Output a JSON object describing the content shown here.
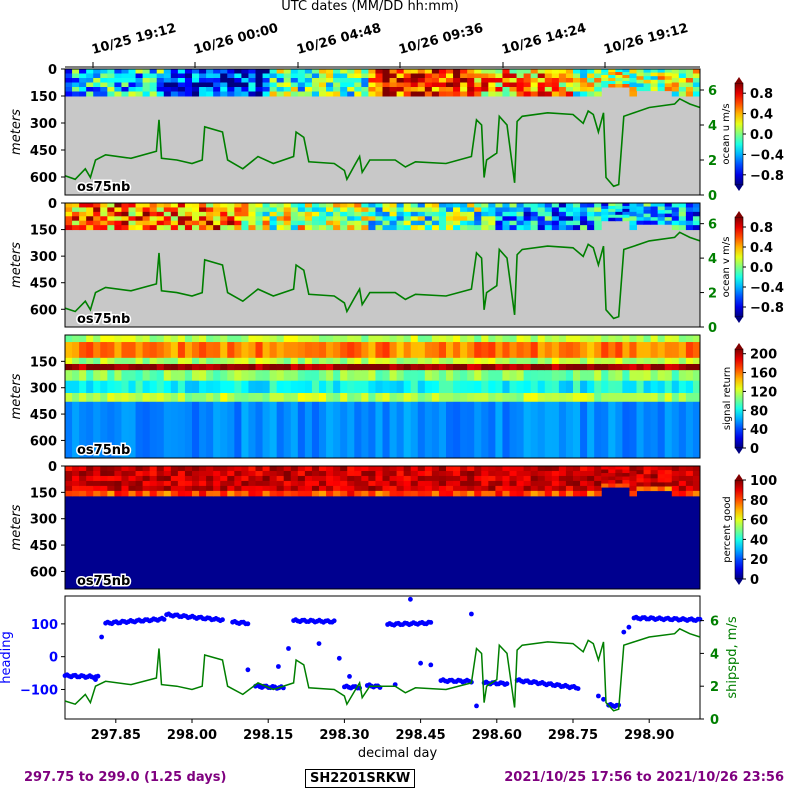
{
  "figure": {
    "top_title": "UTC dates (MM/DD hh:mm)",
    "date_ticks": [
      "10/25 19:12",
      "10/26 00:00",
      "10/26 04:48",
      "10/26 09:36",
      "10/26 14:24",
      "10/26 19:12"
    ],
    "footer_left": "297.75 to 299.0 (1.25 days)",
    "footer_center": "SH2201SRKW",
    "footer_right": "2021/10/25 17:56 to 2021/10/26 23:56"
  },
  "chart_data": [
    {
      "type": "heatmap",
      "panel": "ocean-u",
      "ylabel": "meters",
      "yticks": [
        "0",
        "150",
        "300",
        "450",
        "600"
      ],
      "ylim": [
        700,
        0
      ],
      "instrument_label": "os75nb",
      "colorbar_label": "ocean u m/s",
      "colorbar_ticks": [
        "0.8",
        "0.4",
        "0.0",
        "−0.4",
        "−0.8"
      ],
      "colorbar_range": [
        -1.0,
        1.0
      ],
      "colormap": "jet",
      "right_axis_ticks": [
        "6",
        "4",
        "2",
        "0"
      ],
      "right_axis_range": [
        0,
        7.2
      ],
      "right_axis_color": "#007f00"
    },
    {
      "type": "heatmap",
      "panel": "ocean-v",
      "ylabel": "meters",
      "yticks": [
        "0",
        "150",
        "300",
        "450",
        "600"
      ],
      "ylim": [
        700,
        0
      ],
      "instrument_label": "os75nb",
      "colorbar_label": "ocean v m/s",
      "colorbar_ticks": [
        "0.8",
        "0.4",
        "0.0",
        "−0.4",
        "−0.8"
      ],
      "colorbar_range": [
        -1.0,
        1.0
      ],
      "colormap": "jet",
      "right_axis_ticks": [
        "6",
        "4",
        "2",
        "0"
      ],
      "right_axis_range": [
        0,
        7.2
      ],
      "right_axis_color": "#007f00"
    },
    {
      "type": "heatmap",
      "panel": "signal-return",
      "ylabel": "meters",
      "yticks": [
        "150",
        "300",
        "450",
        "600"
      ],
      "ylim": [
        700,
        0
      ],
      "instrument_label": "os75nb",
      "colorbar_label": "signal return",
      "colorbar_ticks": [
        "200",
        "160",
        "120",
        "80",
        "40",
        "0"
      ],
      "colorbar_range": [
        0,
        210
      ],
      "colormap": "jet"
    },
    {
      "type": "heatmap",
      "panel": "percent-good",
      "ylabel": "meters",
      "yticks": [
        "0",
        "150",
        "300",
        "450",
        "600"
      ],
      "ylim": [
        700,
        0
      ],
      "instrument_label": "os75nb",
      "colorbar_label": "percent good",
      "colorbar_ticks": [
        "100",
        "80",
        "60",
        "40",
        "20",
        "0"
      ],
      "colorbar_range": [
        0,
        100
      ],
      "colormap": "jet"
    },
    {
      "type": "scatter",
      "panel": "heading-shipspd",
      "xlabel": "decimal day",
      "xticks": [
        "297.85",
        "298.00",
        "298.15",
        "298.30",
        "298.45",
        "298.60",
        "298.75",
        "298.90"
      ],
      "xlim": [
        297.75,
        299.0
      ],
      "ylabel": "heading",
      "ylabel_color": "#0000ff",
      "yticks": [
        "100",
        "0",
        "−100"
      ],
      "ylim": [
        -190,
        185
      ],
      "y2label": "shipspd, m/s",
      "y2label_color": "#007f00",
      "y2ticks": [
        "6",
        "4",
        "2",
        "0"
      ],
      "y2lim": [
        0,
        7.5
      ],
      "series": [
        {
          "color": "#0000ff",
          "segments": [
            {
              "x0": 297.75,
              "x1": 297.815,
              "y0": -58,
              "y1": -62
            },
            {
              "x0": 297.83,
              "x1": 297.945,
              "y0": 102,
              "y1": 115
            },
            {
              "x0": 297.95,
              "x1": 298.06,
              "y0": 128,
              "y1": 112
            },
            {
              "x0": 298.08,
              "x1": 298.11,
              "y0": 105,
              "y1": 102
            },
            {
              "x0": 298.125,
              "x1": 298.18,
              "y0": -90,
              "y1": -95
            },
            {
              "x0": 298.2,
              "x1": 298.28,
              "y0": 110,
              "y1": 107
            },
            {
              "x0": 298.3,
              "x1": 298.33,
              "y0": -92,
              "y1": -94
            },
            {
              "x0": 298.345,
              "x1": 298.37,
              "y0": -88,
              "y1": -92
            },
            {
              "x0": 298.385,
              "x1": 298.47,
              "y0": 98,
              "y1": 103
            },
            {
              "x0": 298.49,
              "x1": 298.55,
              "y0": -73,
              "y1": -75
            },
            {
              "x0": 298.575,
              "x1": 298.62,
              "y0": -80,
              "y1": -82
            },
            {
              "x0": 298.64,
              "x1": 298.76,
              "y0": -72,
              "y1": -95
            },
            {
              "x0": 298.82,
              "x1": 298.84,
              "y0": -148,
              "y1": -150
            },
            {
              "x0": 298.87,
              "x1": 299.0,
              "y0": 118,
              "y1": 112
            }
          ],
          "points": [
            {
              "x": 297.81,
              "y": -70
            },
            {
              "x": 297.822,
              "y": 60
            },
            {
              "x": 298.11,
              "y": -40
            },
            {
              "x": 298.17,
              "y": -30
            },
            {
              "x": 298.19,
              "y": 25
            },
            {
              "x": 298.25,
              "y": 40
            },
            {
              "x": 298.29,
              "y": -5
            },
            {
              "x": 298.31,
              "y": -60
            },
            {
              "x": 298.4,
              "y": -85
            },
            {
              "x": 298.43,
              "y": 175
            },
            {
              "x": 298.45,
              "y": -20
            },
            {
              "x": 298.47,
              "y": -25
            },
            {
              "x": 298.55,
              "y": 130
            },
            {
              "x": 298.56,
              "y": -150
            },
            {
              "x": 298.8,
              "y": -120
            },
            {
              "x": 298.81,
              "y": -130
            },
            {
              "x": 298.85,
              "y": 75
            },
            {
              "x": 298.86,
              "y": 90
            }
          ]
        },
        {
          "color": "#007f00",
          "axis": "right",
          "points": [
            {
              "x": 297.75,
              "y": 1.1
            },
            {
              "x": 297.77,
              "y": 0.9
            },
            {
              "x": 297.79,
              "y": 1.5
            },
            {
              "x": 297.8,
              "y": 1.0
            },
            {
              "x": 297.81,
              "y": 2.0
            },
            {
              "x": 297.83,
              "y": 2.3
            },
            {
              "x": 297.88,
              "y": 2.1
            },
            {
              "x": 297.93,
              "y": 2.5
            },
            {
              "x": 297.935,
              "y": 4.3
            },
            {
              "x": 297.94,
              "y": 2.1
            },
            {
              "x": 297.97,
              "y": 2.0
            },
            {
              "x": 298.0,
              "y": 1.8
            },
            {
              "x": 298.02,
              "y": 2.0
            },
            {
              "x": 298.025,
              "y": 3.9
            },
            {
              "x": 298.06,
              "y": 3.6
            },
            {
              "x": 298.07,
              "y": 2.0
            },
            {
              "x": 298.1,
              "y": 1.5
            },
            {
              "x": 298.13,
              "y": 2.2
            },
            {
              "x": 298.16,
              "y": 1.8
            },
            {
              "x": 298.2,
              "y": 2.2
            },
            {
              "x": 298.205,
              "y": 3.6
            },
            {
              "x": 298.22,
              "y": 3.3
            },
            {
              "x": 298.23,
              "y": 1.9
            },
            {
              "x": 298.28,
              "y": 1.8
            },
            {
              "x": 298.3,
              "y": 1.4
            },
            {
              "x": 298.305,
              "y": 0.9
            },
            {
              "x": 298.32,
              "y": 1.7
            },
            {
              "x": 298.33,
              "y": 2.2
            },
            {
              "x": 298.335,
              "y": 1.3
            },
            {
              "x": 298.35,
              "y": 2.0
            },
            {
              "x": 298.4,
              "y": 2.0
            },
            {
              "x": 298.42,
              "y": 1.6
            },
            {
              "x": 298.44,
              "y": 1.9
            },
            {
              "x": 298.5,
              "y": 1.8
            },
            {
              "x": 298.55,
              "y": 2.2
            },
            {
              "x": 298.56,
              "y": 4.3
            },
            {
              "x": 298.57,
              "y": 4.0
            },
            {
              "x": 298.575,
              "y": 1.0
            },
            {
              "x": 298.58,
              "y": 2.0
            },
            {
              "x": 298.6,
              "y": 2.4
            },
            {
              "x": 298.605,
              "y": 4.5
            },
            {
              "x": 298.62,
              "y": 4.0
            },
            {
              "x": 298.635,
              "y": 0.7
            },
            {
              "x": 298.64,
              "y": 4.2
            },
            {
              "x": 298.65,
              "y": 4.5
            },
            {
              "x": 298.7,
              "y": 4.7
            },
            {
              "x": 298.75,
              "y": 4.6
            },
            {
              "x": 298.77,
              "y": 4.1
            },
            {
              "x": 298.78,
              "y": 4.8
            },
            {
              "x": 298.79,
              "y": 4.6
            },
            {
              "x": 298.8,
              "y": 3.6
            },
            {
              "x": 298.81,
              "y": 4.7
            },
            {
              "x": 298.815,
              "y": 1.0
            },
            {
              "x": 298.83,
              "y": 0.5
            },
            {
              "x": 298.84,
              "y": 0.6
            },
            {
              "x": 298.85,
              "y": 4.5
            },
            {
              "x": 298.87,
              "y": 4.7
            },
            {
              "x": 298.9,
              "y": 5.0
            },
            {
              "x": 298.95,
              "y": 5.2
            },
            {
              "x": 298.96,
              "y": 5.5
            },
            {
              "x": 298.98,
              "y": 5.2
            },
            {
              "x": 299.0,
              "y": 5.0
            }
          ]
        }
      ]
    }
  ]
}
